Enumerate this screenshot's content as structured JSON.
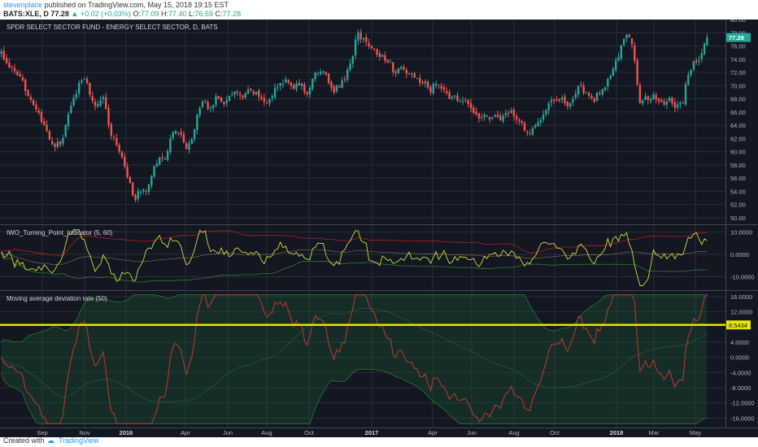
{
  "header": {
    "user": "stevenplace",
    "published": "published on TradingView.com, May 15, 2018 19:15 EST",
    "symbol": "BATS:XLE, D",
    "last": "77.28",
    "change": "+0.02 (+0.03%)",
    "o_label": "O:",
    "o_value": "77.09",
    "h_label": "H:",
    "h_value": "77.40",
    "l_label": "L:",
    "l_value": "76.69",
    "c_label": "C:",
    "c_value": "77.28"
  },
  "footer": {
    "created_with": "Created with",
    "brand": "TradingView"
  },
  "colors": {
    "background": "#131722",
    "up": "#26a69a",
    "down": "#ef5350",
    "grid": "#2a2e39",
    "axis_text": "#b2b5be",
    "yellow_line": "#e5e500",
    "red_line": "#c0392b",
    "band_green": "#1e5631"
  },
  "chart_data": [
    {
      "type": "candlestick",
      "title": "SPDR SELECT SECTOR FUND - ENERGY SELECT SECTOR, D, BATS",
      "last_price_label": "77.28",
      "ylim": [
        49.0,
        80.0
      ],
      "yticks": [
        "80.00",
        "78.00",
        "76.00",
        "74.00",
        "72.00",
        "70.00",
        "68.00",
        "66.00",
        "64.00",
        "62.00",
        "60.00",
        "58.00",
        "56.00",
        "54.00",
        "52.00",
        "50.00"
      ],
      "close_path": [
        [
          0,
          75
        ],
        [
          8,
          73.2
        ],
        [
          16,
          72
        ],
        [
          26,
          70.5
        ],
        [
          34,
          68.6
        ],
        [
          42,
          66.5
        ],
        [
          50,
          64.5
        ],
        [
          58,
          62.2
        ],
        [
          66,
          60.8
        ],
        [
          74,
          61.5
        ],
        [
          84,
          66
        ],
        [
          92,
          69
        ],
        [
          100,
          71.5
        ],
        [
          106,
          70
        ],
        [
          112,
          67.8
        ],
        [
          118,
          66.8
        ],
        [
          126,
          68.8
        ],
        [
          134,
          63
        ],
        [
          142,
          61.2
        ],
        [
          150,
          58.6
        ],
        [
          158,
          55.2
        ],
        [
          164,
          52.8
        ],
        [
          170,
          54
        ],
        [
          178,
          53.8
        ],
        [
          186,
          57
        ],
        [
          194,
          59
        ],
        [
          200,
          58.5
        ],
        [
          208,
          62
        ],
        [
          216,
          63.6
        ],
        [
          222,
          62
        ],
        [
          228,
          60.6
        ],
        [
          234,
          62
        ],
        [
          240,
          65
        ],
        [
          248,
          67.8
        ],
        [
          256,
          66.5
        ],
        [
          264,
          68
        ],
        [
          272,
          67.2
        ],
        [
          280,
          68.4
        ],
        [
          288,
          69
        ],
        [
          296,
          67.8
        ],
        [
          304,
          69.2
        ],
        [
          312,
          68.8
        ],
        [
          320,
          68.2
        ],
        [
          328,
          67.2
        ],
        [
          336,
          69.2
        ],
        [
          344,
          70.4
        ],
        [
          352,
          71
        ],
        [
          360,
          69.8
        ],
        [
          368,
          70.2
        ],
        [
          376,
          68.8
        ],
        [
          384,
          71.2
        ],
        [
          392,
          72.4
        ],
        [
          400,
          71.6
        ],
        [
          408,
          68.6
        ],
        [
          414,
          70
        ],
        [
          420,
          70.4
        ],
        [
          426,
          72.2
        ],
        [
          432,
          74.6
        ],
        [
          438,
          78.2
        ],
        [
          444,
          77
        ],
        [
          450,
          76.2
        ],
        [
          456,
          75.8
        ],
        [
          462,
          74.6
        ],
        [
          468,
          74.6
        ],
        [
          476,
          73.8
        ],
        [
          484,
          72
        ],
        [
          492,
          72.4
        ],
        [
          500,
          71.8
        ],
        [
          508,
          71.6
        ],
        [
          514,
          70.2
        ],
        [
          520,
          70.6
        ],
        [
          528,
          69.2
        ],
        [
          536,
          70.6
        ],
        [
          544,
          69.6
        ],
        [
          552,
          67.8
        ],
        [
          560,
          68.2
        ],
        [
          568,
          67.6
        ],
        [
          576,
          66.8
        ],
        [
          584,
          65.6
        ],
        [
          592,
          65.2
        ],
        [
          600,
          65
        ],
        [
          608,
          65.4
        ],
        [
          616,
          64.8
        ],
        [
          624,
          66.2
        ],
        [
          632,
          65.2
        ],
        [
          640,
          64.4
        ],
        [
          646,
          62.5
        ],
        [
          652,
          63
        ],
        [
          658,
          64.6
        ],
        [
          664,
          65.2
        ],
        [
          670,
          66.6
        ],
        [
          676,
          68
        ],
        [
          682,
          68.2
        ],
        [
          688,
          68
        ],
        [
          696,
          67.2
        ],
        [
          704,
          68.2
        ],
        [
          710,
          70.2
        ],
        [
          716,
          69
        ],
        [
          722,
          68.2
        ],
        [
          728,
          67.6
        ],
        [
          734,
          68.8
        ],
        [
          740,
          69.4
        ],
        [
          746,
          71
        ],
        [
          752,
          72.2
        ],
        [
          758,
          74.2
        ],
        [
          764,
          76.6
        ],
        [
          770,
          77.8
        ],
        [
          774,
          77.6
        ],
        [
          778,
          74.5
        ],
        [
          782,
          70
        ],
        [
          786,
          66.5
        ],
        [
          790,
          68.2
        ],
        [
          796,
          67.6
        ],
        [
          802,
          68.8
        ],
        [
          808,
          67.8
        ],
        [
          814,
          67.4
        ],
        [
          820,
          68.2
        ],
        [
          826,
          67
        ],
        [
          832,
          66.8
        ],
        [
          838,
          67.5
        ],
        [
          842,
          70.2
        ],
        [
          846,
          71.8
        ],
        [
          852,
          73.8
        ],
        [
          858,
          73.4
        ],
        [
          862,
          75.2
        ],
        [
          866,
          76.5
        ],
        [
          869,
          77.28
        ]
      ]
    },
    {
      "type": "line",
      "title": "IWO_Turning_Point_Indicator (5, 60)",
      "ylim": [
        -16.0,
        13.0
      ],
      "yticks": [
        "10.0000",
        "0.0000",
        "-10.0000"
      ],
      "series": []
    },
    {
      "type": "line",
      "title": "Moving average deviation rate (50)",
      "ylim": [
        -18.5,
        17.5
      ],
      "yticks": [
        "16.0000",
        "12.0000",
        "4.0000",
        "0.0000",
        "-4.0000",
        "-8.0000",
        "-12.0000",
        "-16.0000"
      ],
      "highlight_label": "8.5434",
      "highlight_value": 8.5434,
      "series": []
    }
  ],
  "x_axis": {
    "labels": [
      {
        "text": "Sep",
        "idx": 52,
        "bold": false
      },
      {
        "text": "Nov",
        "idx": 104,
        "bold": false
      },
      {
        "text": "2016",
        "idx": 155,
        "bold": true
      },
      {
        "text": "Apr",
        "idx": 228,
        "bold": false
      },
      {
        "text": "Jun",
        "idx": 280,
        "bold": false
      },
      {
        "text": "Aug",
        "idx": 328,
        "bold": false
      },
      {
        "text": "Oct",
        "idx": 380,
        "bold": false
      },
      {
        "text": "2017",
        "idx": 457,
        "bold": true
      },
      {
        "text": "Apr",
        "idx": 532,
        "bold": false
      },
      {
        "text": "Jun",
        "idx": 580,
        "bold": false
      },
      {
        "text": "Aug",
        "idx": 632,
        "bold": false
      },
      {
        "text": "Oct",
        "idx": 682,
        "bold": false
      },
      {
        "text": "2018",
        "idx": 758,
        "bold": true
      },
      {
        "text": "Mar",
        "idx": 804,
        "bold": false
      },
      {
        "text": "May",
        "idx": 855,
        "bold": false
      }
    ]
  }
}
